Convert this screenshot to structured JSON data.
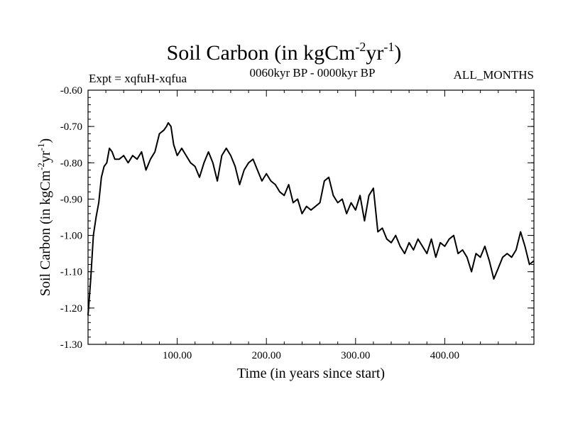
{
  "header": {
    "title_main": "Soil Carbon (in kgCm",
    "title_exp1": "-2",
    "title_mid": "yr",
    "title_exp2": "-1",
    "title_end": ")",
    "expt": "Expt = xqfuH-xqfua",
    "period": "0060kyr BP - 0000kyr BP",
    "months": "ALL_MONTHS"
  },
  "chart_data": {
    "type": "line",
    "title": "Soil Carbon (in kgCm-2yr-1)",
    "xlabel": "Time (in years since start)",
    "ylabel": "Soil Carbon (in kgCm-2yr-1)",
    "xlim": [
      0,
      500
    ],
    "ylim": [
      -1.3,
      -0.6
    ],
    "x_ticks": [
      100,
      200,
      300,
      400
    ],
    "x_tick_labels": [
      "100.00",
      "200.00",
      "300.00",
      "400.00"
    ],
    "y_ticks": [
      -0.6,
      -0.7,
      -0.8,
      -0.9,
      -1.0,
      -1.1,
      -1.2,
      -1.3
    ],
    "y_tick_labels": [
      "-0.60",
      "-0.70",
      "-0.80",
      "-0.90",
      "-1.00",
      "-1.10",
      "-1.20",
      "-1.30"
    ],
    "series": [
      {
        "name": "soil carbon",
        "x": [
          0,
          3,
          6,
          9,
          12,
          15,
          18,
          21,
          24,
          27,
          30,
          35,
          40,
          45,
          50,
          55,
          60,
          65,
          70,
          75,
          80,
          85,
          88,
          90,
          93,
          96,
          100,
          105,
          110,
          115,
          120,
          125,
          130,
          135,
          140,
          145,
          150,
          155,
          160,
          165,
          170,
          175,
          180,
          185,
          190,
          195,
          200,
          205,
          210,
          215,
          220,
          225,
          230,
          235,
          240,
          245,
          250,
          255,
          260,
          265,
          270,
          275,
          280,
          285,
          290,
          295,
          300,
          305,
          310,
          315,
          320,
          325,
          330,
          335,
          340,
          345,
          350,
          355,
          360,
          365,
          370,
          375,
          380,
          385,
          390,
          395,
          400,
          405,
          410,
          415,
          420,
          425,
          430,
          435,
          440,
          445,
          450,
          455,
          460,
          465,
          470,
          475,
          480,
          485,
          490,
          495,
          500
        ],
        "y": [
          -1.22,
          -1.12,
          -1.0,
          -0.95,
          -0.91,
          -0.84,
          -0.81,
          -0.8,
          -0.76,
          -0.77,
          -0.79,
          -0.79,
          -0.78,
          -0.8,
          -0.78,
          -0.79,
          -0.77,
          -0.82,
          -0.79,
          -0.77,
          -0.72,
          -0.71,
          -0.7,
          -0.69,
          -0.7,
          -0.75,
          -0.78,
          -0.76,
          -0.78,
          -0.8,
          -0.81,
          -0.84,
          -0.8,
          -0.77,
          -0.8,
          -0.85,
          -0.78,
          -0.76,
          -0.78,
          -0.81,
          -0.86,
          -0.82,
          -0.8,
          -0.79,
          -0.82,
          -0.85,
          -0.83,
          -0.85,
          -0.86,
          -0.88,
          -0.89,
          -0.86,
          -0.91,
          -0.9,
          -0.94,
          -0.92,
          -0.93,
          -0.92,
          -0.91,
          -0.85,
          -0.84,
          -0.89,
          -0.91,
          -0.9,
          -0.94,
          -0.91,
          -0.93,
          -0.89,
          -0.96,
          -0.89,
          -0.87,
          -0.99,
          -0.98,
          -1.01,
          -1.02,
          -1.0,
          -1.03,
          -1.05,
          -1.02,
          -1.04,
          -1.01,
          -1.03,
          -1.05,
          -1.01,
          -1.06,
          -1.02,
          -1.03,
          -1.01,
          -1.0,
          -1.05,
          -1.04,
          -1.06,
          -1.1,
          -1.05,
          -1.06,
          -1.03,
          -1.07,
          -1.12,
          -1.09,
          -1.06,
          -1.05,
          -1.06,
          -1.04,
          -0.99,
          -1.03,
          -1.08,
          -1.07
        ]
      }
    ]
  }
}
